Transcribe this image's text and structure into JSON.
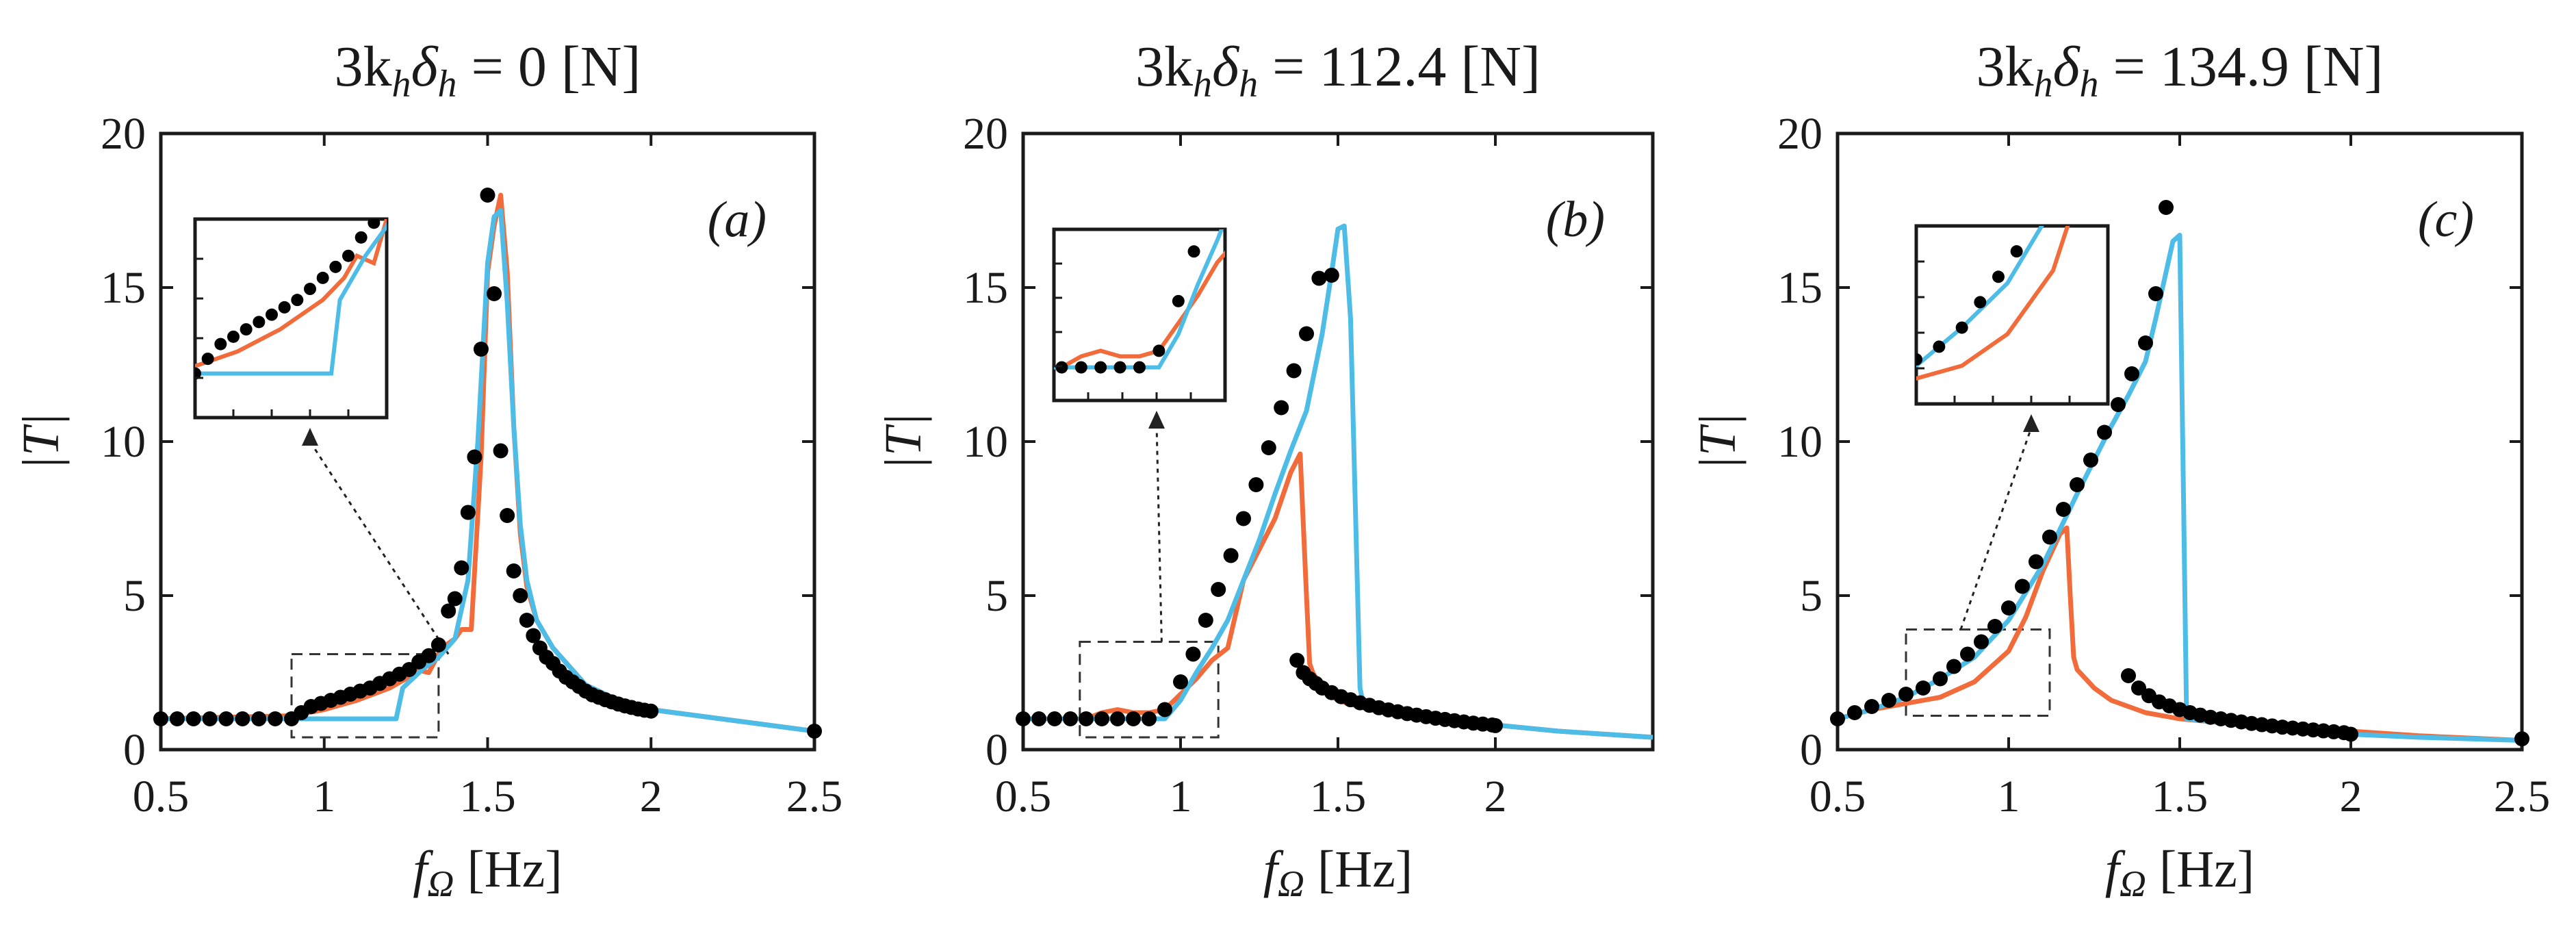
{
  "colors": {
    "simulation_orange": "#f26b3a",
    "simulation_blue": "#4dbde8",
    "experiment_black": "#000000",
    "axis": "#1a1a1a"
  },
  "chart_data": [
    {
      "type": "line",
      "panel": "(a)",
      "title": {
        "prefix": "3k",
        "sub1": "h",
        "delta": "δ",
        "sub2": "h",
        "value": " = 0 [N]"
      },
      "xlabel": {
        "f": "f",
        "sub": "Ω",
        "unit": " [Hz]"
      },
      "ylabel": "|T|",
      "xlim": [
        0.5,
        2.5
      ],
      "ylim": [
        0,
        20
      ],
      "xticks": [
        "0.5",
        "1",
        "1.5",
        "2",
        "2.5"
      ],
      "yticks": [
        "0",
        "5",
        "10",
        "15",
        "20"
      ],
      "inset_box": {
        "x": [
          0.9,
          1.35
        ],
        "y": [
          0.4,
          3.1
        ]
      },
      "arrow_from": [
        1.16,
        10.0
      ],
      "arrow_to": [
        1.38,
        3.1
      ],
      "series": [
        {
          "name": "orange",
          "x": [
            0.5,
            0.9,
            1.0,
            1.1,
            1.2,
            1.25,
            1.28,
            1.32,
            1.36,
            1.4,
            1.42,
            1.45,
            1.48,
            1.5,
            1.52,
            1.54,
            1.56,
            1.58,
            1.6,
            1.62,
            1.65,
            1.7,
            1.8,
            1.9,
            2.0,
            2.5
          ],
          "y": [
            1.0,
            1.1,
            1.3,
            1.6,
            2.0,
            2.3,
            2.6,
            2.5,
            3.3,
            3.6,
            3.9,
            3.9,
            9.5,
            15.5,
            17.0,
            18.0,
            15.5,
            10.5,
            7.0,
            5.3,
            4.2,
            3.3,
            2.1,
            1.6,
            1.3,
            0.6
          ]
        },
        {
          "name": "blue",
          "x": [
            0.5,
            0.9,
            1.22,
            1.24,
            1.3,
            1.35,
            1.4,
            1.44,
            1.47,
            1.5,
            1.52,
            1.54,
            1.56,
            1.58,
            1.6,
            1.62,
            1.65,
            1.7,
            1.8,
            1.9,
            2.0,
            2.5
          ],
          "y": [
            1.0,
            1.0,
            1.0,
            2.0,
            2.6,
            3.0,
            3.6,
            5.5,
            10.0,
            15.8,
            17.3,
            17.5,
            14.5,
            10.5,
            7.3,
            5.5,
            4.2,
            3.3,
            2.1,
            1.6,
            1.3,
            0.6
          ]
        },
        {
          "name": "dots",
          "x": [
            0.5,
            0.55,
            0.6,
            0.65,
            0.7,
            0.75,
            0.8,
            0.85,
            0.9,
            0.93,
            0.96,
            0.99,
            1.02,
            1.05,
            1.08,
            1.11,
            1.14,
            1.17,
            1.2,
            1.23,
            1.26,
            1.29,
            1.32,
            1.35,
            1.38,
            1.4,
            1.42,
            1.44,
            1.46,
            1.48,
            1.5,
            1.52,
            1.54,
            1.56,
            1.58,
            1.6,
            1.62,
            1.64,
            1.66,
            1.68,
            1.7,
            1.72,
            1.74,
            1.76,
            1.78,
            1.8,
            1.82,
            1.84,
            1.86,
            1.88,
            1.9,
            1.92,
            1.94,
            1.96,
            1.98,
            2.0,
            2.5
          ],
          "y": [
            1.0,
            1.0,
            1.0,
            1.0,
            1.0,
            1.0,
            1.0,
            1.0,
            1.0,
            1.2,
            1.4,
            1.5,
            1.6,
            1.7,
            1.8,
            1.9,
            2.0,
            2.15,
            2.3,
            2.45,
            2.6,
            2.85,
            3.05,
            3.4,
            4.5,
            4.9,
            5.9,
            7.7,
            9.5,
            13.0,
            18.0,
            14.8,
            9.7,
            7.6,
            5.8,
            5.0,
            4.2,
            3.7,
            3.3,
            3.0,
            2.8,
            2.55,
            2.35,
            2.2,
            2.05,
            1.9,
            1.78,
            1.7,
            1.62,
            1.55,
            1.48,
            1.42,
            1.37,
            1.32,
            1.28,
            1.25,
            0.6
          ]
        }
      ]
    },
    {
      "type": "line",
      "panel": "(b)",
      "title": {
        "prefix": "3k",
        "sub1": "h",
        "delta": "δ",
        "sub2": "h",
        "value": " = 112.4 [N]"
      },
      "xlabel": {
        "f": "f",
        "sub": "Ω",
        "unit": " [Hz]"
      },
      "ylabel": "|T|",
      "xlim": [
        0.5,
        2.5
      ],
      "ylim": [
        0,
        20
      ],
      "xticks": [
        "0.5",
        "1",
        "1.5",
        "2"
      ],
      "yticks": [
        "0",
        "5",
        "10",
        "15",
        "20"
      ],
      "inset_box": {
        "x": [
          0.68,
          1.12
        ],
        "y": [
          0.4,
          3.5
        ]
      },
      "arrow_from": [
        0.82,
        11.0
      ],
      "arrow_to": [
        0.94,
        3.5
      ],
      "series": [
        {
          "name": "orange",
          "x": [
            0.5,
            0.7,
            0.75,
            0.8,
            0.85,
            0.9,
            0.95,
            1.0,
            1.05,
            1.1,
            1.15,
            1.2,
            1.25,
            1.3,
            1.35,
            1.38,
            1.4,
            1.41,
            1.42,
            1.45,
            1.5,
            1.6,
            1.8,
            2.0,
            2.2,
            2.5
          ],
          "y": [
            1.0,
            1.0,
            1.2,
            1.3,
            1.2,
            1.2,
            1.3,
            1.8,
            2.3,
            2.9,
            3.3,
            5.5,
            6.5,
            7.5,
            9.0,
            9.6,
            5.0,
            2.8,
            2.5,
            2.0,
            1.6,
            1.3,
            1.0,
            0.8,
            0.6,
            0.4
          ]
        },
        {
          "name": "blue",
          "x": [
            0.5,
            0.95,
            1.0,
            1.05,
            1.1,
            1.15,
            1.2,
            1.25,
            1.3,
            1.35,
            1.4,
            1.45,
            1.48,
            1.5,
            1.52,
            1.54,
            1.56,
            1.57,
            1.58,
            1.6,
            1.7,
            1.8,
            2.0,
            2.2,
            2.5
          ],
          "y": [
            1.0,
            1.0,
            1.6,
            2.5,
            3.3,
            4.2,
            5.5,
            6.8,
            8.3,
            9.7,
            11.0,
            13.5,
            15.5,
            16.9,
            17.0,
            14.0,
            6.0,
            2.0,
            1.5,
            1.3,
            1.1,
            1.0,
            0.8,
            0.6,
            0.4
          ]
        },
        {
          "name": "dots_lower",
          "x": [
            0.5,
            0.55,
            0.6,
            0.65,
            0.7,
            0.75,
            0.8,
            0.85,
            0.9,
            0.95,
            1.0,
            1.04,
            1.08,
            1.12,
            1.16,
            1.2,
            1.24,
            1.28,
            1.32,
            1.36,
            1.4,
            1.44,
            1.48
          ],
          "y": [
            1.0,
            1.0,
            1.0,
            1.0,
            1.0,
            1.0,
            1.0,
            1.0,
            1.0,
            1.3,
            2.2,
            3.1,
            4.2,
            5.2,
            6.3,
            7.5,
            8.6,
            9.8,
            11.1,
            12.3,
            13.5,
            15.3,
            15.4
          ]
        },
        {
          "name": "dots_upper",
          "x": [
            1.37,
            1.39,
            1.41,
            1.43,
            1.45,
            1.48,
            1.51,
            1.54,
            1.57,
            1.6,
            1.63,
            1.66,
            1.69,
            1.72,
            1.75,
            1.78,
            1.81,
            1.84,
            1.87,
            1.9,
            1.93,
            1.96,
            1.99,
            2.0
          ],
          "y": [
            2.9,
            2.5,
            2.3,
            2.15,
            2.0,
            1.85,
            1.72,
            1.62,
            1.52,
            1.44,
            1.36,
            1.29,
            1.23,
            1.17,
            1.12,
            1.07,
            1.02,
            0.98,
            0.94,
            0.9,
            0.86,
            0.83,
            0.8,
            0.78
          ]
        }
      ]
    },
    {
      "type": "line",
      "panel": "(c)",
      "title": {
        "prefix": "3k",
        "sub1": "h",
        "delta": "δ",
        "sub2": "h",
        "value": " = 134.9 [N]"
      },
      "xlabel": {
        "f": "f",
        "sub": "Ω",
        "unit": " [Hz]"
      },
      "ylabel": "|T|",
      "xlim": [
        0.5,
        2.5
      ],
      "ylim": [
        0,
        20
      ],
      "xticks": [
        "0.5",
        "1",
        "1.5",
        "2",
        "2.5"
      ],
      "yticks": [
        "0",
        "5",
        "10",
        "15",
        "20"
      ],
      "inset_box": {
        "x": [
          0.7,
          1.12
        ],
        "y": [
          1.1,
          3.9
        ]
      },
      "arrow_from": [
        0.84,
        11.0
      ],
      "arrow_to": [
        0.86,
        3.9
      ],
      "series": [
        {
          "name": "orange",
          "x": [
            0.5,
            0.6,
            0.7,
            0.8,
            0.9,
            1.0,
            1.05,
            1.1,
            1.15,
            1.17,
            1.18,
            1.19,
            1.2,
            1.25,
            1.3,
            1.4,
            1.5,
            1.7,
            2.0,
            2.2,
            2.5
          ],
          "y": [
            1.0,
            1.3,
            1.5,
            1.7,
            2.2,
            3.2,
            4.3,
            5.8,
            7.0,
            7.2,
            5.0,
            3.0,
            2.6,
            2.0,
            1.6,
            1.2,
            1.0,
            0.8,
            0.6,
            0.45,
            0.3
          ]
        },
        {
          "name": "blue",
          "x": [
            0.5,
            0.6,
            0.7,
            0.8,
            0.9,
            1.0,
            1.1,
            1.2,
            1.3,
            1.35,
            1.4,
            1.43,
            1.46,
            1.48,
            1.5,
            1.51,
            1.52,
            1.6,
            1.8,
            2.0,
            2.2,
            2.5
          ],
          "y": [
            1.0,
            1.3,
            1.7,
            2.3,
            3.0,
            4.2,
            6.0,
            8.3,
            10.5,
            11.5,
            12.6,
            14.0,
            15.5,
            16.5,
            16.7,
            9.0,
            1.0,
            0.9,
            0.7,
            0.5,
            0.4,
            0.3
          ]
        },
        {
          "name": "dots_lower",
          "x": [
            0.5,
            0.55,
            0.6,
            0.65,
            0.7,
            0.75,
            0.8,
            0.84,
            0.88,
            0.92,
            0.96,
            1.0,
            1.04,
            1.08,
            1.12,
            1.16,
            1.2,
            1.24,
            1.28,
            1.32,
            1.36,
            1.4,
            1.43,
            1.46
          ],
          "y": [
            1.0,
            1.2,
            1.4,
            1.6,
            1.8,
            2.0,
            2.3,
            2.7,
            3.1,
            3.5,
            4.0,
            4.6,
            5.3,
            6.1,
            6.9,
            7.8,
            8.6,
            9.4,
            10.3,
            11.2,
            12.2,
            13.2,
            14.8,
            17.6
          ]
        },
        {
          "name": "dots_upper",
          "x": [
            1.35,
            1.38,
            1.41,
            1.44,
            1.47,
            1.5,
            1.53,
            1.56,
            1.59,
            1.62,
            1.65,
            1.68,
            1.71,
            1.74,
            1.77,
            1.8,
            1.83,
            1.86,
            1.89,
            1.92,
            1.95,
            1.98,
            2.0,
            2.5
          ],
          "y": [
            2.4,
            2.0,
            1.75,
            1.55,
            1.42,
            1.3,
            1.2,
            1.12,
            1.05,
            1.0,
            0.95,
            0.9,
            0.85,
            0.81,
            0.77,
            0.73,
            0.7,
            0.67,
            0.64,
            0.61,
            0.58,
            0.55,
            0.5,
            0.35
          ]
        }
      ]
    }
  ]
}
